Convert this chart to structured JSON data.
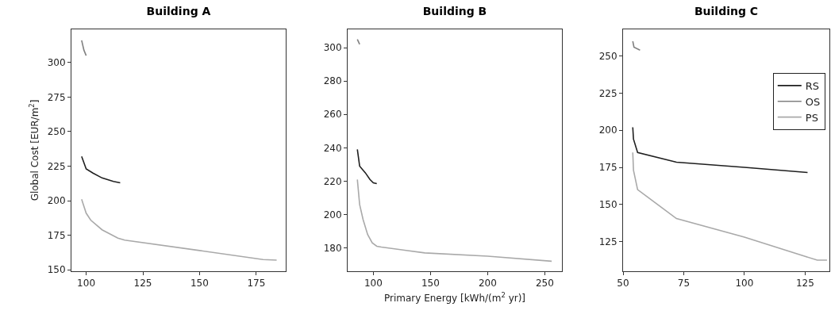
{
  "chart_data": [
    {
      "type": "line",
      "title": "Building A",
      "ylabel": "Global Cost [EUR/m$^{2}$]",
      "xlim": [
        93.5,
        188
      ],
      "ylim": [
        149,
        324
      ],
      "xticks": [
        100,
        125,
        150,
        175
      ],
      "yticks": [
        150,
        175,
        200,
        225,
        250,
        275,
        300
      ],
      "grid": false,
      "legend": false,
      "series": [
        {
          "color": "#1f1f1f",
          "x": [
            98,
            100,
            103,
            107,
            112,
            115
          ],
          "values": [
            232,
            223,
            220,
            216.5,
            214,
            213
          ]
        },
        {
          "color": "#808080",
          "x": [
            98,
            99,
            100
          ],
          "values": [
            316,
            309,
            305
          ]
        },
        {
          "color": "#a9a9a9",
          "x": [
            98,
            100,
            102,
            107,
            114,
            117,
            150,
            178,
            184
          ],
          "values": [
            201,
            191,
            186,
            179,
            173,
            171.5,
            164,
            157.5,
            157
          ]
        }
      ]
    },
    {
      "type": "line",
      "title": "Building B",
      "xlabel": "Primary Energy [kWh/(m$^{2}$ yr)]",
      "xlim": [
        77.5,
        265
      ],
      "ylim": [
        166,
        311
      ],
      "xticks": [
        100,
        150,
        200,
        250
      ],
      "yticks": [
        180,
        200,
        220,
        240,
        260,
        280,
        300
      ],
      "grid": false,
      "legend": false,
      "series": [
        {
          "color": "#1f1f1f",
          "x": [
            86,
            88,
            93,
            97,
            100,
            103
          ],
          "values": [
            239,
            229,
            225,
            221,
            219,
            218.5
          ]
        },
        {
          "color": "#808080",
          "x": [
            86,
            88
          ],
          "values": [
            305,
            302
          ]
        },
        {
          "color": "#a9a9a9",
          "x": [
            86,
            88,
            91,
            95,
            99,
            103,
            107,
            145,
            200,
            256
          ],
          "values": [
            221,
            206,
            197,
            188,
            183,
            181,
            180.5,
            177,
            175,
            172
          ]
        }
      ]
    },
    {
      "type": "line",
      "title": "Building C",
      "xlim": [
        50,
        135
      ],
      "ylim": [
        105,
        268
      ],
      "xticks": [
        50,
        75,
        100,
        125
      ],
      "yticks": [
        125,
        150,
        175,
        200,
        225,
        250
      ],
      "grid": false,
      "legend": "top right",
      "series": [
        {
          "name": "RS",
          "color": "#1f1f1f",
          "x": [
            54,
            54.3,
            56,
            72,
            100,
            126
          ],
          "values": [
            202,
            194,
            185,
            178.5,
            175,
            171.5
          ]
        },
        {
          "name": "OS",
          "color": "#808080",
          "x": [
            54,
            54.5,
            57
          ],
          "values": [
            260,
            256,
            254
          ]
        },
        {
          "name": "PS",
          "color": "#a9a9a9",
          "x": [
            54,
            54.3,
            56,
            72,
            100,
            125,
            130,
            134
          ],
          "values": [
            185,
            173,
            160,
            140.5,
            128,
            115,
            112.5,
            112.5
          ]
        }
      ]
    }
  ]
}
